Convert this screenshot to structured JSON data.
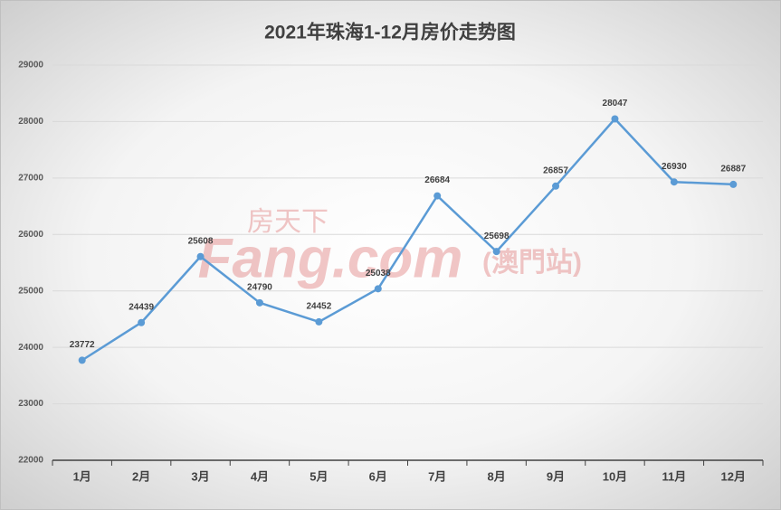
{
  "chart_data": {
    "type": "line",
    "title": "2021年珠海1-12月房价走势图",
    "categories": [
      "1月",
      "2月",
      "3月",
      "4月",
      "5月",
      "6月",
      "7月",
      "8月",
      "9月",
      "10月",
      "11月",
      "12月"
    ],
    "series": [
      {
        "name": "房价",
        "color": "#5b9bd5",
        "values": [
          23772,
          24439,
          25608,
          24790,
          24452,
          25038,
          26684,
          25698,
          26857,
          28047,
          26930,
          26887
        ]
      }
    ],
    "ylim": [
      22000,
      29000
    ],
    "yticks": [
      22000,
      23000,
      24000,
      25000,
      26000,
      27000,
      28000,
      29000
    ],
    "grid": true,
    "watermark": {
      "brand_cn": "房天下",
      "brand": "Fang.com",
      "region": "(澳門站)"
    }
  }
}
